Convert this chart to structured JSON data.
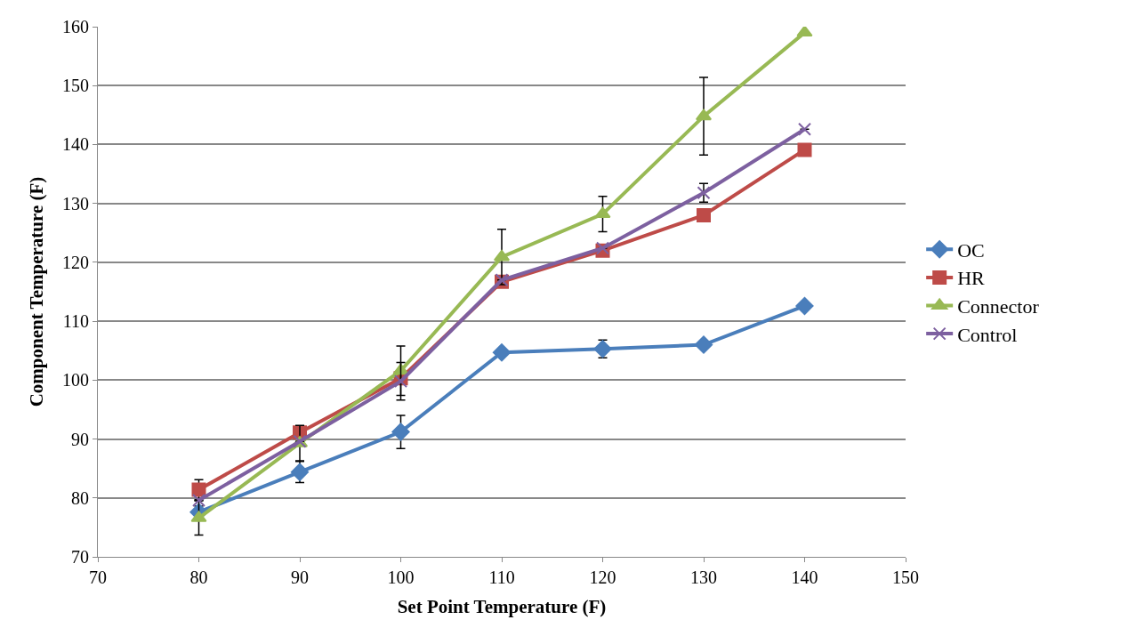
{
  "chart_data": {
    "type": "line",
    "xlabel": "Set Point Temperature (F)",
    "ylabel": "Component Temperature (F)",
    "x": [
      80,
      90,
      100,
      110,
      120,
      130,
      140
    ],
    "xlim": [
      70,
      150
    ],
    "xticks": [
      70,
      80,
      90,
      100,
      110,
      120,
      130,
      140,
      150
    ],
    "ylim": [
      70,
      160
    ],
    "yticks": [
      70,
      80,
      90,
      100,
      110,
      120,
      130,
      140,
      150,
      160
    ],
    "grid": "y",
    "legend": "right",
    "series": [
      {
        "name": "OC",
        "color": "#4a7ebb",
        "marker": "diamond",
        "values": [
          77.6,
          84.4,
          91.2,
          104.7,
          105.3,
          106.0,
          112.6
        ],
        "errors": [
          1,
          1.8,
          2.8,
          null,
          1.5,
          null,
          null
        ]
      },
      {
        "name": "HR",
        "color": "#be4b48",
        "marker": "square",
        "values": [
          81.4,
          91.1,
          100.3,
          116.7,
          122.0,
          128.0,
          139.1
        ],
        "errors": [
          1.7,
          null,
          null,
          null,
          null,
          null,
          null
        ]
      },
      {
        "name": "Connector",
        "color": "#98b954",
        "marker": "triangle",
        "values": [
          76.6,
          89.3,
          101.6,
          120.9,
          128.2,
          144.8,
          159.0
        ],
        "errors": [
          2.9,
          3,
          4.2,
          4.7,
          3,
          6.6,
          null
        ]
      },
      {
        "name": "Control",
        "color": "#7d60a0",
        "marker": "cross",
        "values": [
          79.6,
          89.6,
          99.8,
          117.0,
          122.4,
          131.8,
          142.6
        ],
        "errors": [
          null,
          null,
          3.2,
          null,
          null,
          1.6,
          null
        ]
      }
    ]
  }
}
